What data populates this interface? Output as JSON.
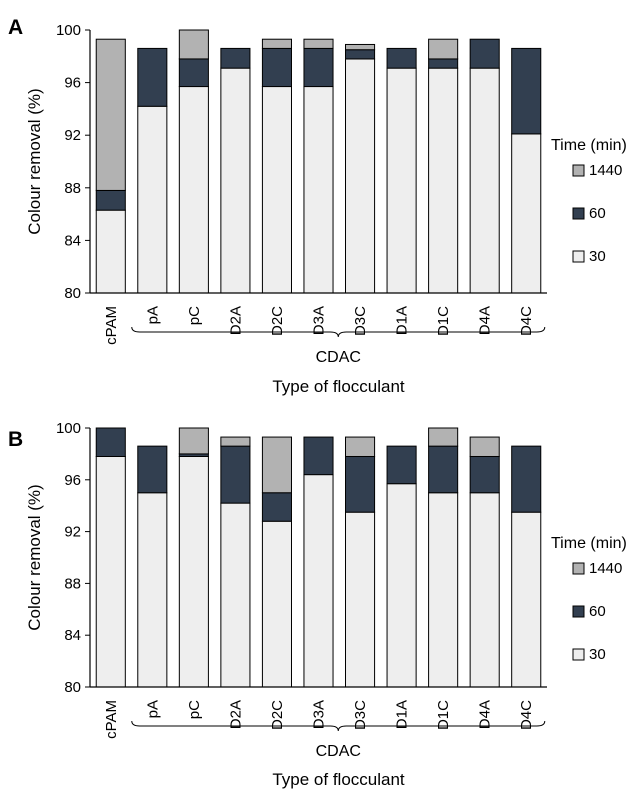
{
  "chart_data": [
    {
      "type": "bar",
      "stacked": true,
      "panel_label": "A",
      "categories": [
        "cPAM",
        "pA",
        "pC",
        "D2A",
        "D2C",
        "D3A",
        "D3C",
        "D1A",
        "D1C",
        "D4A",
        "D4C"
      ],
      "series": [
        {
          "name": "30",
          "cumulative": [
            86.3,
            94.2,
            95.7,
            97.1,
            95.7,
            95.7,
            97.8,
            97.1,
            97.1,
            97.1,
            92.1
          ]
        },
        {
          "name": "60",
          "cumulative": [
            87.8,
            98.6,
            97.8,
            98.6,
            98.6,
            98.6,
            98.5,
            98.6,
            97.8,
            99.3,
            98.6
          ]
        },
        {
          "name": "1440",
          "cumulative": [
            99.3,
            98.6,
            100,
            98.6,
            99.3,
            99.3,
            98.9,
            98.6,
            99.3,
            99.3,
            98.6
          ]
        }
      ],
      "ylabel": "Colour removal (%)",
      "xlabel": "Type of flocculant",
      "group_label": "CDAC",
      "ylim": [
        80,
        100
      ],
      "yticks": [
        80,
        84,
        88,
        92,
        96,
        100
      ],
      "legend": {
        "title": "Time (min)",
        "entries": [
          "1440",
          "60",
          "30"
        ],
        "placement": "right"
      },
      "colors": {
        "30": "#eeeeee",
        "60": "#323f50",
        "1440": "#b2b2b2"
      }
    },
    {
      "type": "bar",
      "stacked": true,
      "panel_label": "B",
      "categories": [
        "cPAM",
        "pA",
        "pC",
        "D2A",
        "D2C",
        "D3A",
        "D3C",
        "D1A",
        "D1C",
        "D4A",
        "D4C"
      ],
      "series": [
        {
          "name": "30",
          "cumulative": [
            97.8,
            95.0,
            97.8,
            94.2,
            92.8,
            96.4,
            93.5,
            95.7,
            95.0,
            95.0,
            93.5
          ]
        },
        {
          "name": "60",
          "cumulative": [
            100,
            98.6,
            98.0,
            98.6,
            95.0,
            99.3,
            97.8,
            98.6,
            98.6,
            97.8,
            98.6
          ]
        },
        {
          "name": "1440",
          "cumulative": [
            100,
            98.6,
            100,
            99.3,
            99.3,
            99.3,
            99.3,
            98.6,
            100,
            99.3,
            98.6
          ]
        }
      ],
      "ylabel": "Colour removal (%)",
      "xlabel": "Type of flocculant",
      "group_label": "CDAC",
      "ylim": [
        80,
        100
      ],
      "yticks": [
        80,
        84,
        88,
        92,
        96,
        100
      ],
      "legend": {
        "title": "Time (min)",
        "entries": [
          "1440",
          "60",
          "30"
        ],
        "placement": "right"
      },
      "colors": {
        "30": "#eeeeee",
        "60": "#323f50",
        "1440": "#b2b2b2"
      }
    }
  ]
}
